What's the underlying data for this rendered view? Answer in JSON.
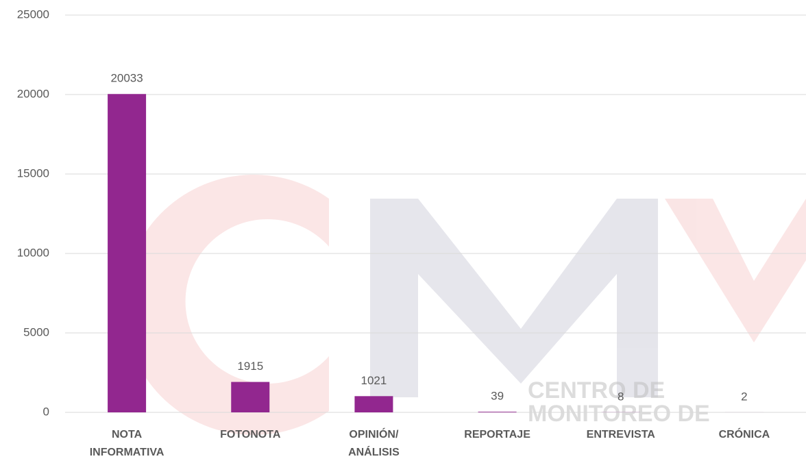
{
  "chart_data": {
    "type": "bar",
    "categories": [
      "NOTA INFORMATIVA",
      "FOTONOTA",
      "OPINIÓN/ ANÁLISIS",
      "REPORTAJE",
      "ENTREVISTA",
      "CRÓNICA"
    ],
    "values": [
      20033,
      1915,
      1021,
      39,
      8,
      2
    ],
    "color": "#92278f",
    "ylim": [
      0,
      25000
    ],
    "yticks": [
      0,
      5000,
      10000,
      15000,
      20000,
      25000
    ],
    "grid": true,
    "watermark": [
      "CENTRO DE",
      "MONITOREO DE"
    ]
  }
}
